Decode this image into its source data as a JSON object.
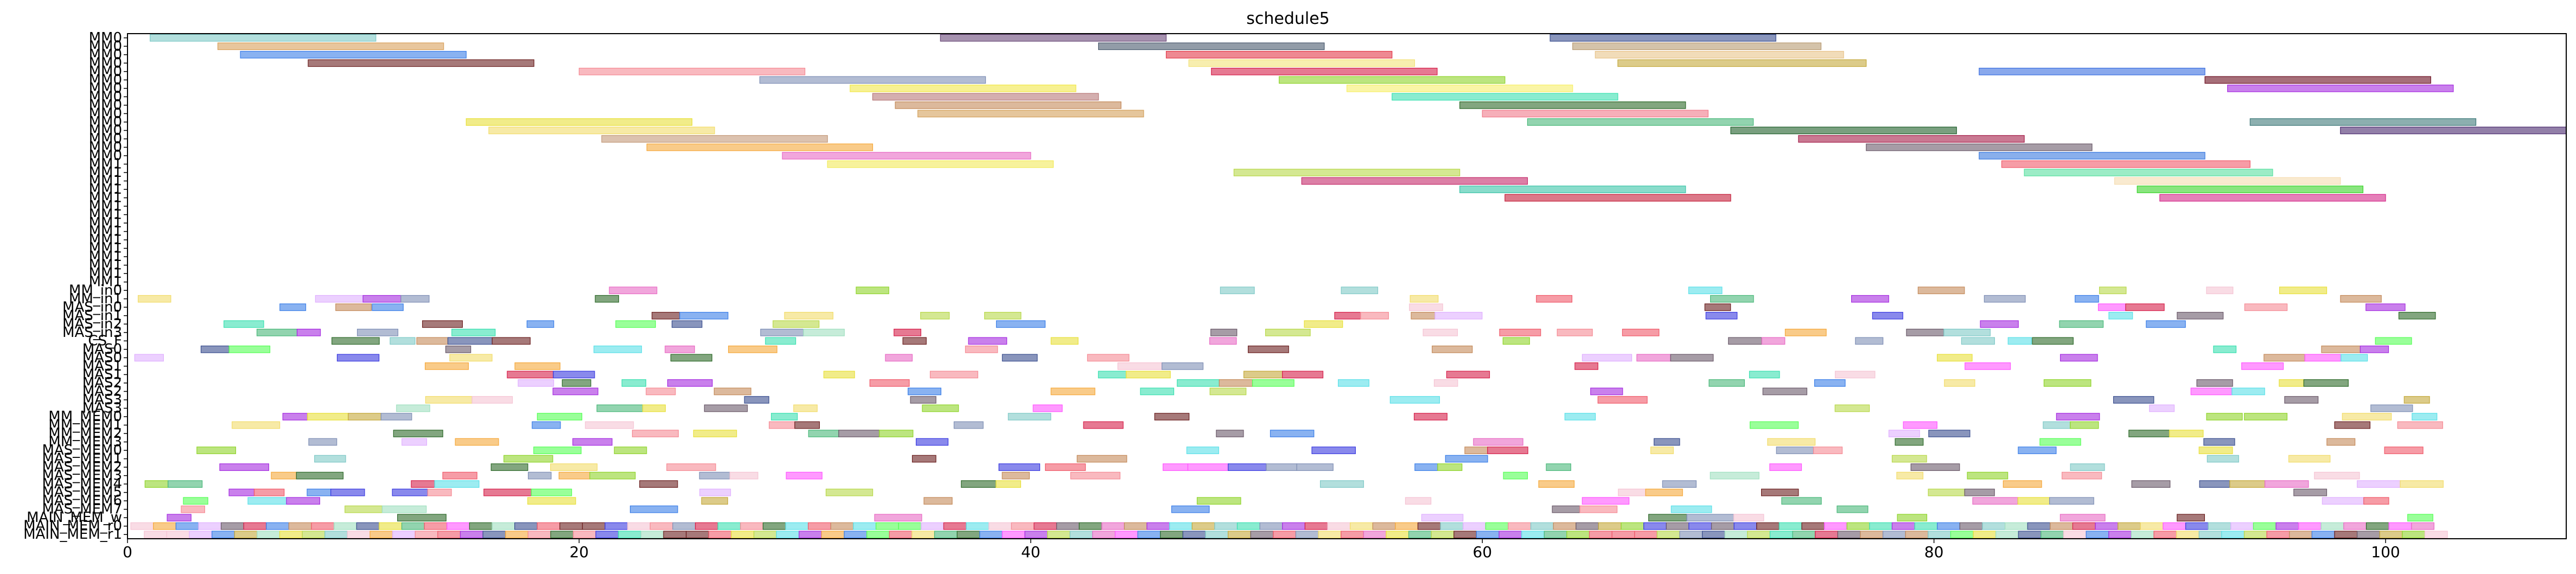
{
  "chart_data": {
    "type": "gantt",
    "title": "schedule5",
    "xlabel": "",
    "ylabel": "",
    "xlim": [
      0,
      108
    ],
    "xticks": [
      0,
      20,
      40,
      60,
      80,
      100
    ],
    "grid": false,
    "categories": [
      "MM0",
      "MM0",
      "MM0",
      "MM0",
      "MM0",
      "MM0",
      "MM0",
      "MM0",
      "MM0",
      "MM0",
      "MM0",
      "MM0",
      "MM0",
      "MM0",
      "MM0",
      "MM1",
      "MM1",
      "MM1",
      "MM1",
      "MM1",
      "MM1",
      "MM1",
      "MM1",
      "MM1",
      "MM1",
      "MM1",
      "MM1",
      "MM1",
      "MM1",
      "MM1",
      "MM_in0",
      "MM_in1",
      "MAS_in0",
      "MAS_in1",
      "MAS_in2",
      "MAS_in3",
      "CS_F",
      "MAS0",
      "MAS0",
      "MAS1",
      "MAS1",
      "MAS2",
      "MAS2",
      "MAS3",
      "MAS3",
      "MM_MEM0",
      "MM_MEM1",
      "MM_MEM2",
      "MM_MEM3",
      "MAS_MEM0",
      "MAS_MEM1",
      "MAS_MEM2",
      "MAS_MEM3",
      "MAS_MEM4",
      "MAS_MEM5",
      "MAS_MEM6",
      "MAS_MEM7",
      "MAIN_MEM_w",
      "MAIN_MEM_r0",
      "MAIN_MEM_r1"
    ],
    "tasks": [
      {
        "row": 0,
        "start": 1,
        "end": 11,
        "color": "#7fc9c7"
      },
      {
        "row": 0,
        "start": 36,
        "end": 46,
        "color": "#6b4a7a"
      },
      {
        "row": 0,
        "start": 63,
        "end": 73,
        "color": "#3b4f8f"
      },
      {
        "row": 1,
        "start": 4,
        "end": 14,
        "color": "#d9a05b"
      },
      {
        "row": 1,
        "start": 43,
        "end": 53,
        "color": "#4a5a6e"
      },
      {
        "row": 1,
        "start": 64,
        "end": 75,
        "color": "#b89b72"
      },
      {
        "row": 2,
        "start": 5,
        "end": 15,
        "color": "#3a7ee8"
      },
      {
        "row": 2,
        "start": 46,
        "end": 56,
        "color": "#e33a4a"
      },
      {
        "row": 2,
        "start": 65,
        "end": 76,
        "color": "#e8c48a"
      },
      {
        "row": 3,
        "start": 8,
        "end": 18,
        "color": "#6b1f1f"
      },
      {
        "row": 3,
        "start": 47,
        "end": 57,
        "color": "#f2e27a"
      },
      {
        "row": 3,
        "start": 66,
        "end": 77,
        "color": "#c4a83a"
      },
      {
        "row": 4,
        "start": 20,
        "end": 30,
        "color": "#f58a94"
      },
      {
        "row": 4,
        "start": 48,
        "end": 58,
        "color": "#d61f4a"
      },
      {
        "row": 4,
        "start": 82,
        "end": 92,
        "color": "#3a6ee0"
      },
      {
        "row": 5,
        "start": 28,
        "end": 38,
        "color": "#7f8fb5"
      },
      {
        "row": 5,
        "start": 51,
        "end": 61,
        "color": "#8fd42a"
      },
      {
        "row": 5,
        "start": 92,
        "end": 102,
        "color": "#6b0f20"
      },
      {
        "row": 6,
        "start": 32,
        "end": 42,
        "color": "#f2e84a"
      },
      {
        "row": 6,
        "start": 54,
        "end": 64,
        "color": "#f7ef6a"
      },
      {
        "row": 6,
        "start": 93,
        "end": 103,
        "color": "#a52be0"
      },
      {
        "row": 7,
        "start": 33,
        "end": 43,
        "color": "#b87a7a"
      },
      {
        "row": 7,
        "start": 56,
        "end": 66,
        "color": "#3ae0b0"
      },
      {
        "row": 8,
        "start": 34,
        "end": 44,
        "color": "#c48a5a"
      },
      {
        "row": 8,
        "start": 59,
        "end": 69,
        "color": "#2e6a2a"
      },
      {
        "row": 9,
        "start": 35,
        "end": 45,
        "color": "#d4a05a"
      },
      {
        "row": 9,
        "start": 60,
        "end": 70,
        "color": "#f07a8a"
      },
      {
        "row": 10,
        "start": 15,
        "end": 25,
        "color": "#e8e03a"
      },
      {
        "row": 10,
        "start": 62,
        "end": 72,
        "color": "#4ab87a"
      },
      {
        "row": 10,
        "start": 94,
        "end": 104,
        "color": "#3f7a7a"
      },
      {
        "row": 11,
        "start": 16,
        "end": 26,
        "color": "#f2dc6a"
      },
      {
        "row": 11,
        "start": 71,
        "end": 81,
        "color": "#1f5f2a"
      },
      {
        "row": 11,
        "start": 98,
        "end": 108,
        "color": "#4a2a6e"
      },
      {
        "row": 12,
        "start": 21,
        "end": 31,
        "color": "#c49a7a"
      },
      {
        "row": 12,
        "start": 74,
        "end": 84,
        "color": "#a51f4a"
      },
      {
        "row": 13,
        "start": 23,
        "end": 33,
        "color": "#f5a83a"
      },
      {
        "row": 13,
        "start": 77,
        "end": 87,
        "color": "#6b5a6a"
      },
      {
        "row": 14,
        "start": 29,
        "end": 40,
        "color": "#e86ac4"
      },
      {
        "row": 14,
        "start": 82,
        "end": 92,
        "color": "#3a7ae0"
      },
      {
        "row": 15,
        "start": 31,
        "end": 41,
        "color": "#f2ea5a"
      },
      {
        "row": 15,
        "start": 83,
        "end": 94,
        "color": "#f05a6a"
      },
      {
        "row": 16,
        "start": 49,
        "end": 59,
        "color": "#b8d84a"
      },
      {
        "row": 16,
        "start": 84,
        "end": 95,
        "color": "#5ae0a0"
      },
      {
        "row": 17,
        "start": 52,
        "end": 62,
        "color": "#c42a6a"
      },
      {
        "row": 17,
        "start": 88,
        "end": 98,
        "color": "#f5dcb0"
      },
      {
        "row": 18,
        "start": 59,
        "end": 69,
        "color": "#3ac4a8"
      },
      {
        "row": 18,
        "start": 89,
        "end": 99,
        "color": "#3ad42a"
      },
      {
        "row": 19,
        "start": 61,
        "end": 71,
        "color": "#c41f3a"
      },
      {
        "row": 19,
        "start": 90,
        "end": 100,
        "color": "#d42a8a"
      }
    ],
    "scatter_seed": 7,
    "scatter_rows_start": 30,
    "scatter_rows_end": 60,
    "palette": [
      "#e8e03a",
      "#f58a94",
      "#3a7ee8",
      "#6b1f1f",
      "#8fd42a",
      "#3ae0b0",
      "#a52be0",
      "#f5a83a",
      "#4ab87a",
      "#d61f4a",
      "#7fc9c7",
      "#c48a5a",
      "#3b4f8f",
      "#f2dc6a",
      "#e86ac4",
      "#6b5a6a",
      "#5ae0e8",
      "#b8d84a",
      "#f05a6a",
      "#2e6a2a",
      "#c4a83a",
      "#7f8fb5",
      "#ff55ff",
      "#55ff55",
      "#3a3ae0",
      "#f5c4d4",
      "#a0e0c0",
      "#e0b0ff"
    ]
  }
}
